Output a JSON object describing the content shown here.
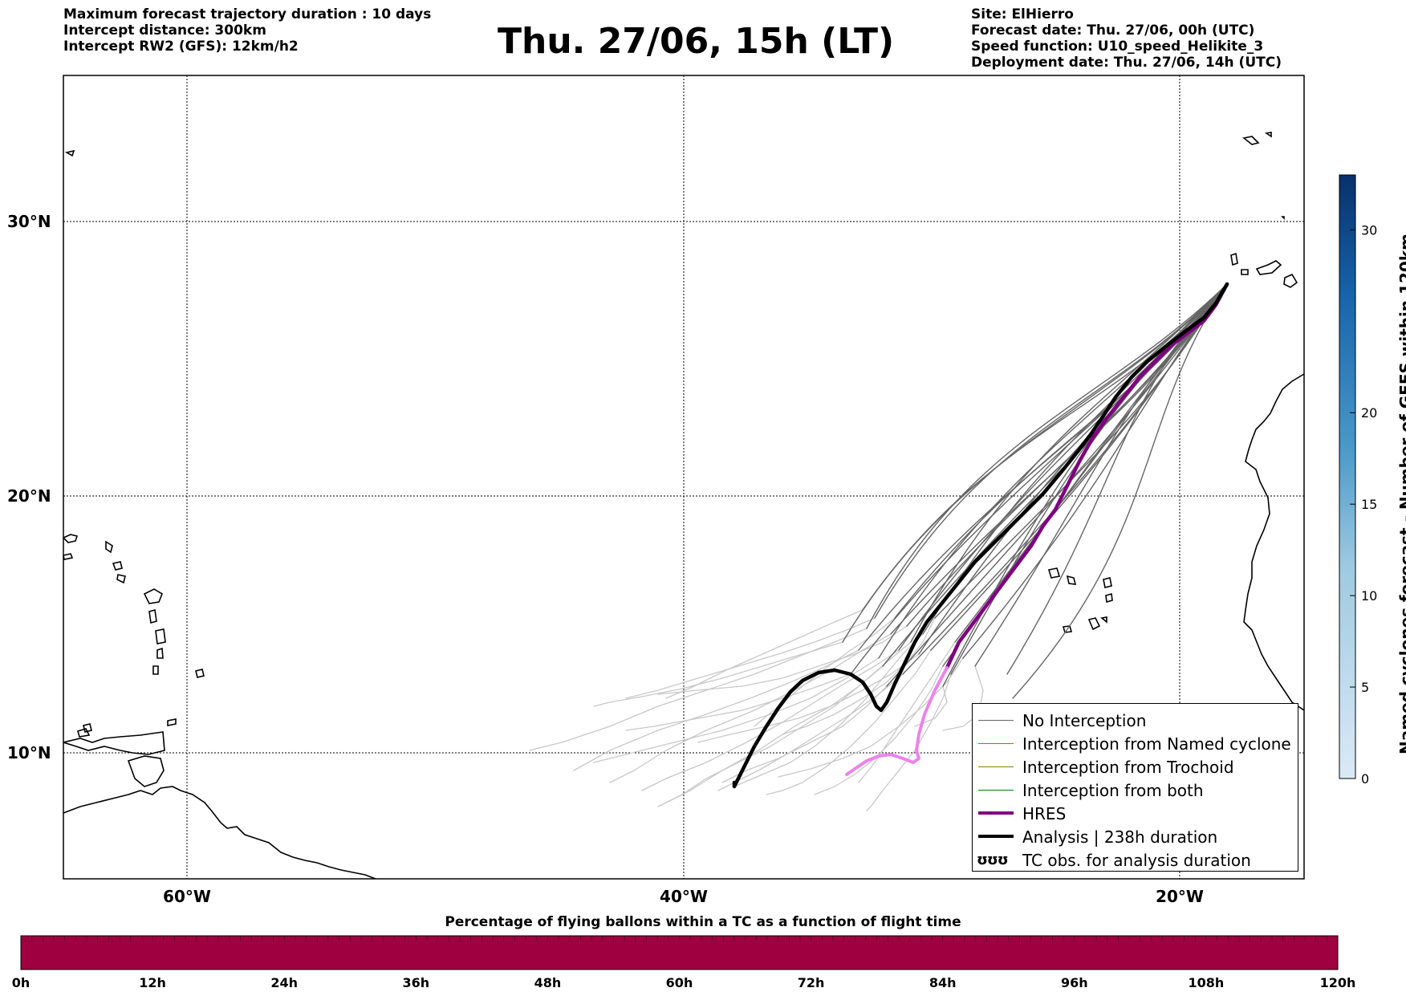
{
  "header": {
    "left_lines": [
      "Maximum forecast trajectory duration : 10 days",
      "Intercept distance: 300km",
      "Intercept RW2 (GFS):  12km/h2"
    ],
    "title": "Thu. 27/06, 15h (LT)",
    "right_lines": [
      "Site: ElHierro",
      "Forecast date: Thu. 27/06, 00h (UTC)",
      "Speed function: U10_speed_Helikite_3",
      "Deployment date: Thu. 27/06, 14h (UTC)"
    ]
  },
  "map": {
    "lon_range": [
      -65,
      15
    ],
    "lat_range": [
      5,
      35.5
    ],
    "lat_labels": [
      "30°N",
      "20°N",
      "10°N"
    ],
    "lon_labels": [
      "60°W",
      "40°W",
      "20°W"
    ],
    "colors": {
      "no_interception": "#666666",
      "ensemble_late": "#c8c8c8",
      "named_cyclone": "#ff4500",
      "trochoid": "#808000",
      "both": "#008000",
      "hres": "#800080",
      "hres_late": "#ee82ee",
      "analysis": "#000000"
    }
  },
  "legend": {
    "items": [
      {
        "label": "No Interception",
        "color": "#666666",
        "width": 1
      },
      {
        "label": "Interception from Named cyclone",
        "color": "#ff4500",
        "width": 1
      },
      {
        "label": "Interception from Trochoid",
        "color": "#808000",
        "width": 1
      },
      {
        "label": "Interception from both",
        "color": "#008000",
        "width": 1
      },
      {
        "label": "HRES",
        "color": "#800080",
        "width": 4
      },
      {
        "label": "Analysis | 238h duration",
        "color": "#000000",
        "width": 4
      }
    ],
    "tc_obs_label": "TC obs. for analysis duration",
    "tc_obs_glyph": "ʊʊʊ"
  },
  "colorbar": {
    "label": "Named cyclones forecast - Number of GEFS within 120km",
    "ticks": [
      "0",
      "5",
      "10",
      "15",
      "20",
      "30"
    ],
    "range": [
      0,
      33
    ]
  },
  "timebar": {
    "title": "Percentage of flying ballons within a TC as a function of flight time",
    "ticks": [
      "0h",
      "12h",
      "24h",
      "36h",
      "48h",
      "60h",
      "72h",
      "84h",
      "96h",
      "108h",
      "120h"
    ],
    "fill_color": "#9e0040"
  }
}
